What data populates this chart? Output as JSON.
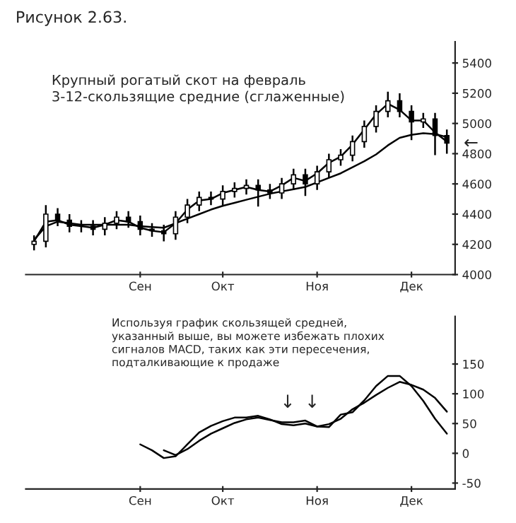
{
  "chart_data": [
    {
      "type": "candlestick",
      "title": "Рисунок 2.63.",
      "annotations": [
        "Крупный рогатый скот на февраль\n3-12-скользящие средние (сглаженные)",
        "←"
      ],
      "categories": [
        null,
        null,
        null,
        null,
        null,
        null,
        null,
        null,
        null,
        "Сен",
        null,
        null,
        null,
        null,
        null,
        null,
        "Окт",
        null,
        null,
        null,
        null,
        null,
        null,
        null,
        "Ноя",
        null,
        null,
        null,
        null,
        null,
        null,
        null,
        "Дек",
        null,
        null,
        null
      ],
      "ohlc": [
        [
          4200,
          4260,
          4160,
          4220
        ],
        [
          4220,
          4460,
          4180,
          4400
        ],
        [
          4400,
          4440,
          4320,
          4360
        ],
        [
          4360,
          4400,
          4280,
          4320
        ],
        [
          4320,
          4360,
          4280,
          4320
        ],
        [
          4320,
          4360,
          4260,
          4300
        ],
        [
          4300,
          4380,
          4260,
          4340
        ],
        [
          4340,
          4420,
          4300,
          4380
        ],
        [
          4380,
          4420,
          4310,
          4350
        ],
        [
          4350,
          4390,
          4260,
          4300
        ],
        [
          4300,
          4340,
          4250,
          4290
        ],
        [
          4290,
          4330,
          4220,
          4270
        ],
        [
          4270,
          4420,
          4230,
          4380
        ],
        [
          4380,
          4500,
          4340,
          4460
        ],
        [
          4460,
          4550,
          4420,
          4510
        ],
        [
          4510,
          4550,
          4460,
          4500
        ],
        [
          4500,
          4590,
          4460,
          4550
        ],
        [
          4550,
          4610,
          4510,
          4570
        ],
        [
          4570,
          4630,
          4530,
          4590
        ],
        [
          4590,
          4630,
          4450,
          4560
        ],
        [
          4560,
          4600,
          4500,
          4540
        ],
        [
          4540,
          4640,
          4500,
          4600
        ],
        [
          4600,
          4700,
          4560,
          4660
        ],
        [
          4660,
          4700,
          4520,
          4600
        ],
        [
          4600,
          4720,
          4560,
          4680
        ],
        [
          4680,
          4800,
          4640,
          4760
        ],
        [
          4760,
          4830,
          4720,
          4790
        ],
        [
          4790,
          4920,
          4750,
          4880
        ],
        [
          4880,
          5020,
          4840,
          4980
        ],
        [
          4980,
          5120,
          4940,
          5080
        ],
        [
          5080,
          5210,
          5040,
          5150
        ],
        [
          5150,
          5200,
          5040,
          5080
        ],
        [
          5080,
          5120,
          4890,
          5010
        ],
        [
          5010,
          5070,
          4970,
          5030
        ],
        [
          5030,
          5070,
          4790,
          4920
        ],
        [
          4920,
          4960,
          4800,
          4870
        ]
      ],
      "series": [
        {
          "type": "line",
          "color": "#000000",
          "values": [
            4220,
            4350,
            4360,
            4330,
            4320,
            4310,
            4330,
            4360,
            4350,
            4310,
            4290,
            4280,
            4340,
            4430,
            4490,
            4500,
            4540,
            4560,
            4580,
            4560,
            4550,
            4590,
            4640,
            4620,
            4670,
            4740,
            4780,
            4860,
            4960,
            5060,
            5130,
            5090,
            5020,
            5020,
            4940,
            4880
          ]
        },
        {
          "type": "line",
          "color": "#000000",
          "values": [
            4230,
            4320,
            4350,
            4340,
            4330,
            4330,
            4330,
            4330,
            4330,
            4320,
            4315,
            4310,
            4340,
            4370,
            4400,
            4430,
            4455,
            4475,
            4495,
            4515,
            4535,
            4550,
            4565,
            4580,
            4610,
            4640,
            4670,
            4710,
            4750,
            4795,
            4855,
            4905,
            4925,
            4935,
            4930,
            4910
          ]
        }
      ],
      "ylim": [
        4000,
        5540
      ],
      "yticks": [
        4000,
        4200,
        4400,
        4600,
        4800,
        5000,
        5200,
        5400
      ]
    },
    {
      "type": "line",
      "annotations": [
        "Используя график скользящей средней,\nуказанный выше, вы можете избежать плохих\nсигналов MACD, таких как эти пересечения,\nподталкивающие к продаже",
        "↓",
        "↓"
      ],
      "categories": [
        null,
        null,
        null,
        null,
        null,
        null,
        null,
        null,
        null,
        "Сен",
        null,
        null,
        null,
        null,
        null,
        null,
        "Окт",
        null,
        null,
        null,
        null,
        null,
        null,
        null,
        "Ноя",
        null,
        null,
        null,
        null,
        null,
        null,
        null,
        "Дек",
        null,
        null,
        null
      ],
      "series": [
        {
          "color": "#000000",
          "values": [
            null,
            null,
            null,
            null,
            null,
            null,
            null,
            null,
            null,
            15,
            5,
            -8,
            -5,
            15,
            35,
            46,
            54,
            60,
            60,
            63,
            57,
            49,
            47,
            50,
            45,
            44,
            65,
            69,
            89,
            113,
            130,
            130,
            113,
            88,
            58,
            33
          ]
        },
        {
          "color": "#000000",
          "values": [
            null,
            null,
            null,
            null,
            null,
            null,
            null,
            null,
            null,
            null,
            null,
            5,
            -3,
            7,
            21,
            33,
            42,
            51,
            57,
            60,
            56,
            52,
            52,
            55,
            45,
            49,
            58,
            74,
            85,
            98,
            110,
            120,
            115,
            107,
            93,
            70
          ]
        }
      ],
      "ylim": [
        -60,
        230
      ],
      "yticks": [
        -50,
        0,
        50,
        100,
        150
      ]
    }
  ]
}
